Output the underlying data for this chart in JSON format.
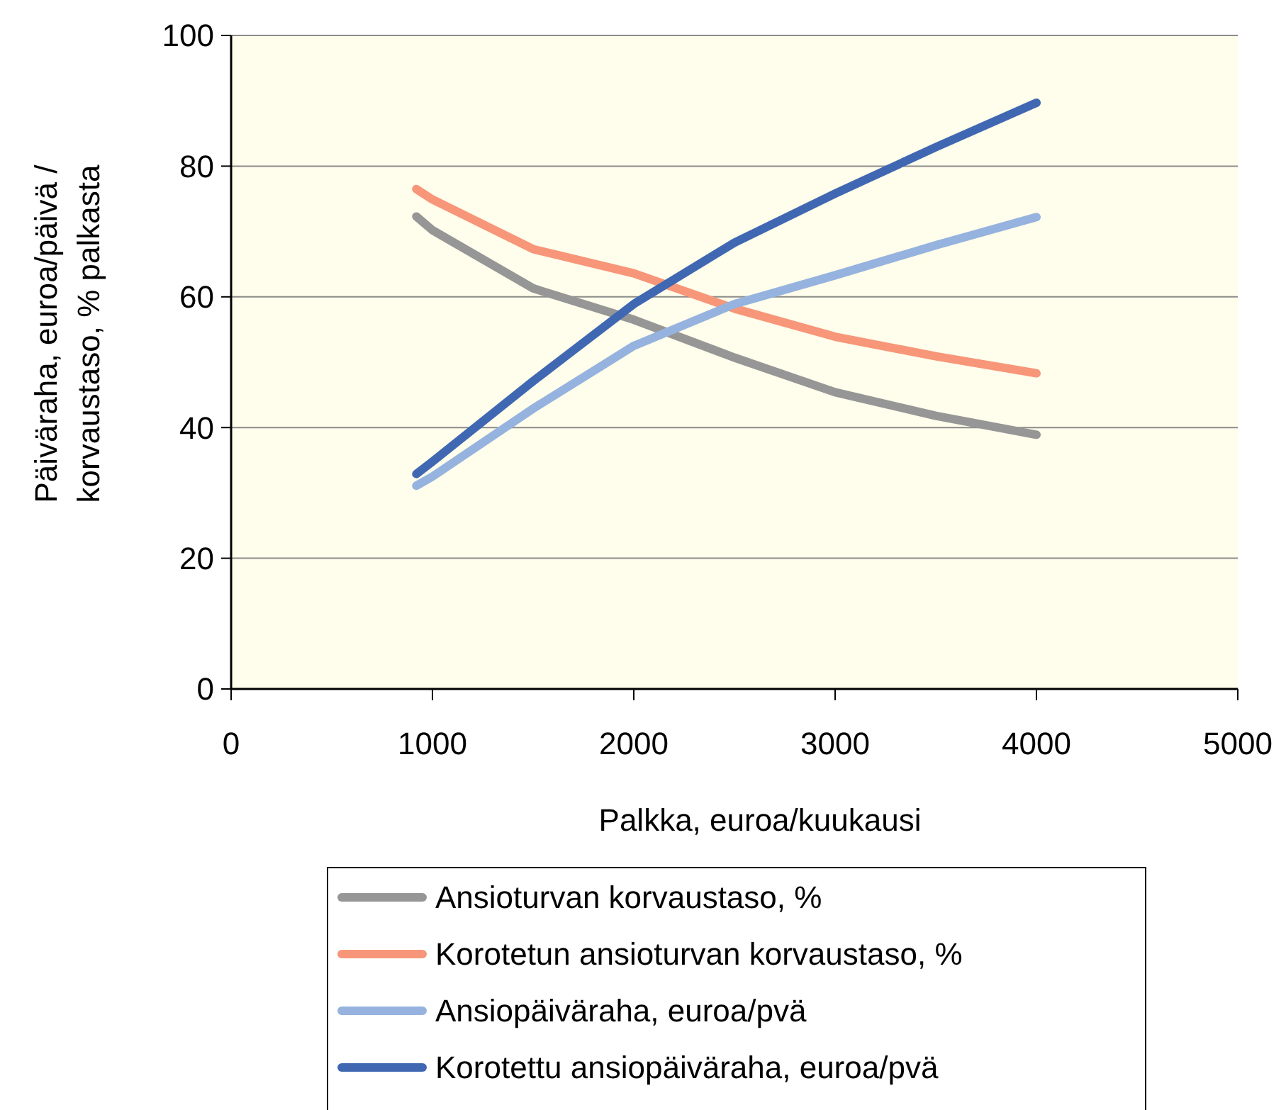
{
  "chart_data": {
    "type": "line",
    "xlabel": "Palkka, euroa/kuukausi",
    "ylabel": "Päiväraha, euroa/päivä / korvaustaso, % palkasta",
    "x": [
      920,
      1000,
      1500,
      2000,
      2500,
      3000,
      3500,
      4000
    ],
    "series": [
      {
        "name": "Ansioturvan korvaustaso, %",
        "color": "#969696",
        "values": [
          72.3,
          70.2,
          61.3,
          56.5,
          50.7,
          45.4,
          41.8,
          38.9
        ]
      },
      {
        "name": "Korotetun ansioturvan korvaustaso, %",
        "color": "#f79679",
        "values": [
          76.5,
          74.9,
          67.3,
          63.6,
          58.2,
          53.9,
          50.9,
          48.3
        ]
      },
      {
        "name": "Ansiopäiväraha, euroa/pvä",
        "color": "#95b3de",
        "values": [
          31.1,
          32.5,
          42.9,
          52.5,
          58.9,
          63.3,
          67.9,
          72.2
        ]
      },
      {
        "name": "Korotettu ansiopäiväraha, euroa/pvä",
        "color": "#4068b2",
        "values": [
          32.9,
          34.8,
          47.1,
          58.9,
          68.3,
          75.8,
          82.9,
          89.7
        ]
      }
    ],
    "xlim": [
      0,
      5000
    ],
    "xticks": [
      0,
      1000,
      2000,
      3000,
      4000,
      5000
    ],
    "ylim": [
      0,
      100
    ],
    "yticks": [
      0,
      20,
      40,
      60,
      80,
      100
    ],
    "grid": "y",
    "legend": "bottom",
    "marker": "none",
    "line_style": "solid"
  }
}
